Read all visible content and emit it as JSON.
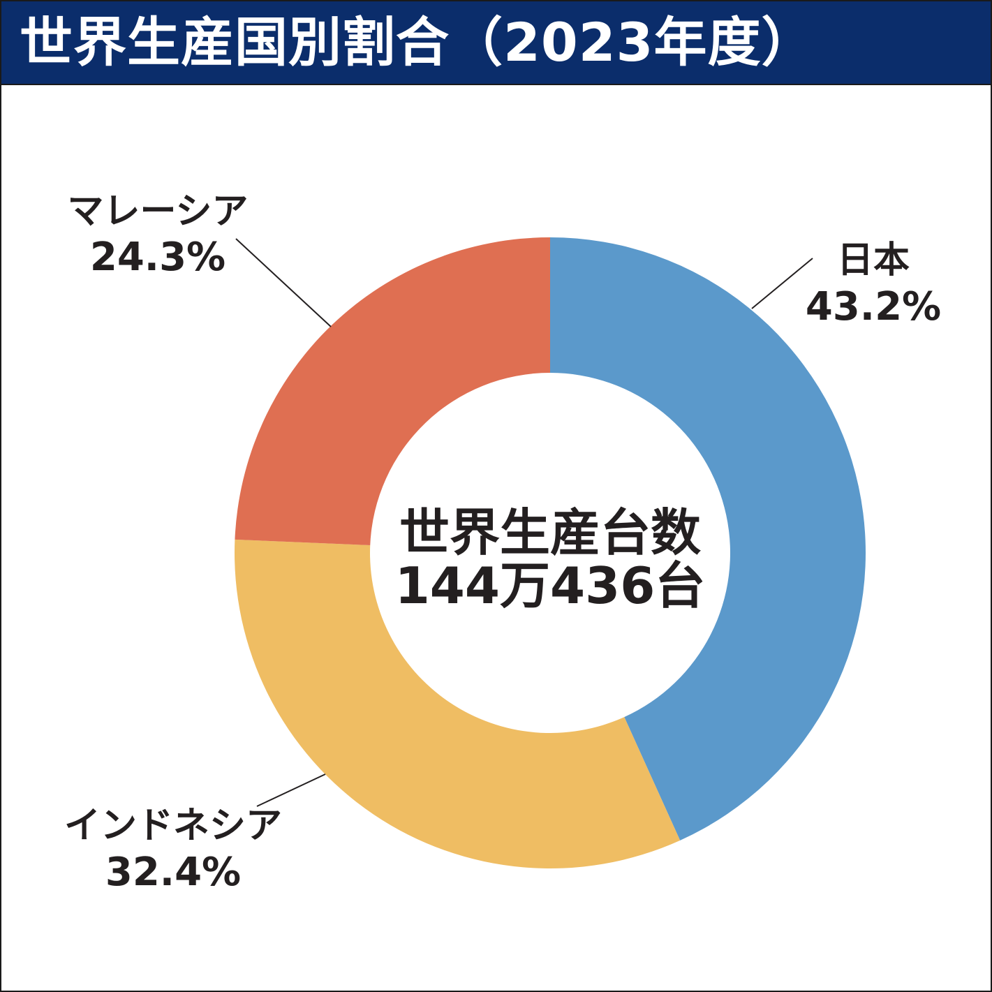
{
  "title": "世界生産国別割合（2023年度）",
  "center": {
    "line1": "世界生産台数",
    "line2": "144万436台"
  },
  "chart_data": {
    "type": "pie",
    "title": "世界生産国別割合（2023年度）",
    "donut": true,
    "start": "12 o'clock, clockwise",
    "slices": [
      {
        "label": "日本",
        "value": 43.2,
        "value_text": "43.2%",
        "color": "#5b99cb"
      },
      {
        "label": "インドネシア",
        "value": 32.4,
        "value_text": "32.4%",
        "color": "#efbd63"
      },
      {
        "label": "マレーシア",
        "value": 24.3,
        "value_text": "24.3%",
        "color": "#df6f52"
      }
    ]
  },
  "colors": {
    "title_bar": "#0b2d6b",
    "title_text": "#ffffff",
    "label_text": "#231f20",
    "leader_line": "#231f20"
  }
}
